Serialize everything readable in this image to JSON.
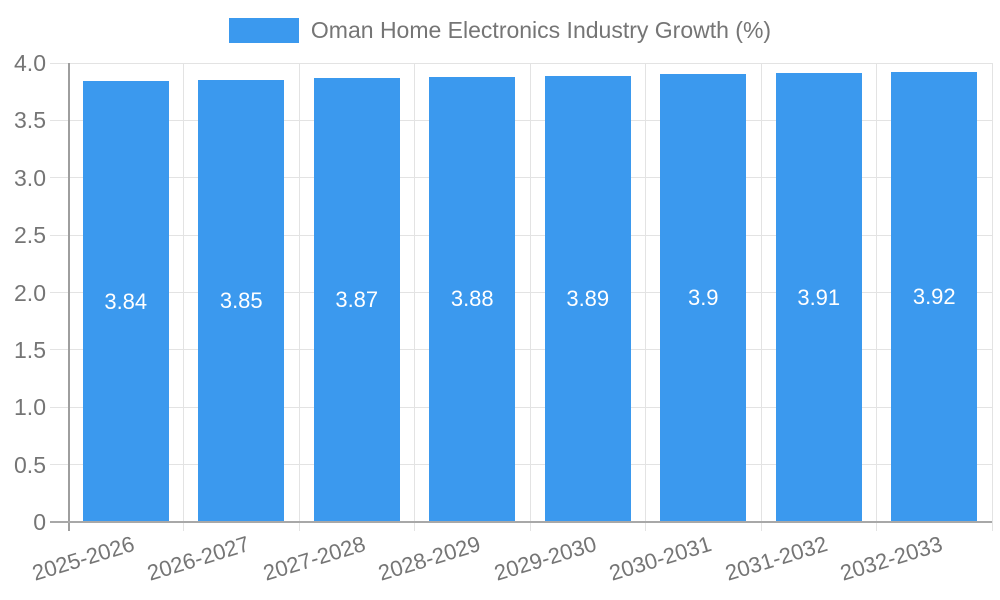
{
  "chart_data": {
    "type": "bar",
    "title": "Oman Home Electronics Industry Growth (%)",
    "legend_position": "top-center",
    "categories": [
      "2025-2026",
      "2026-2027",
      "2027-2028",
      "2028-2029",
      "2029-2030",
      "2030-2031",
      "2031-2032",
      "2032-2033"
    ],
    "series": [
      {
        "name": "Oman Home Electronics Industry Growth (%)",
        "values": [
          3.84,
          3.85,
          3.87,
          3.88,
          3.89,
          3.9,
          3.91,
          3.92
        ],
        "value_labels": [
          "3.84",
          "3.85",
          "3.87",
          "3.88",
          "3.89",
          "3.9",
          "3.91",
          "3.92"
        ]
      }
    ],
    "xlabel": "",
    "ylabel": "",
    "ylim": [
      0,
      4
    ],
    "ytick_labels": [
      "4.0",
      "3.5",
      "3.0",
      "2.5",
      "2.0",
      "1.5",
      "1.0",
      "0.5",
      "0"
    ],
    "grid": "on",
    "colors": {
      "bar": "#3b99ee",
      "grid": "#e3e3e3",
      "axis": "#9e9e9e",
      "tick_text": "#757575",
      "bar_label_text": "#ffffff",
      "background": "#ffffff"
    }
  }
}
